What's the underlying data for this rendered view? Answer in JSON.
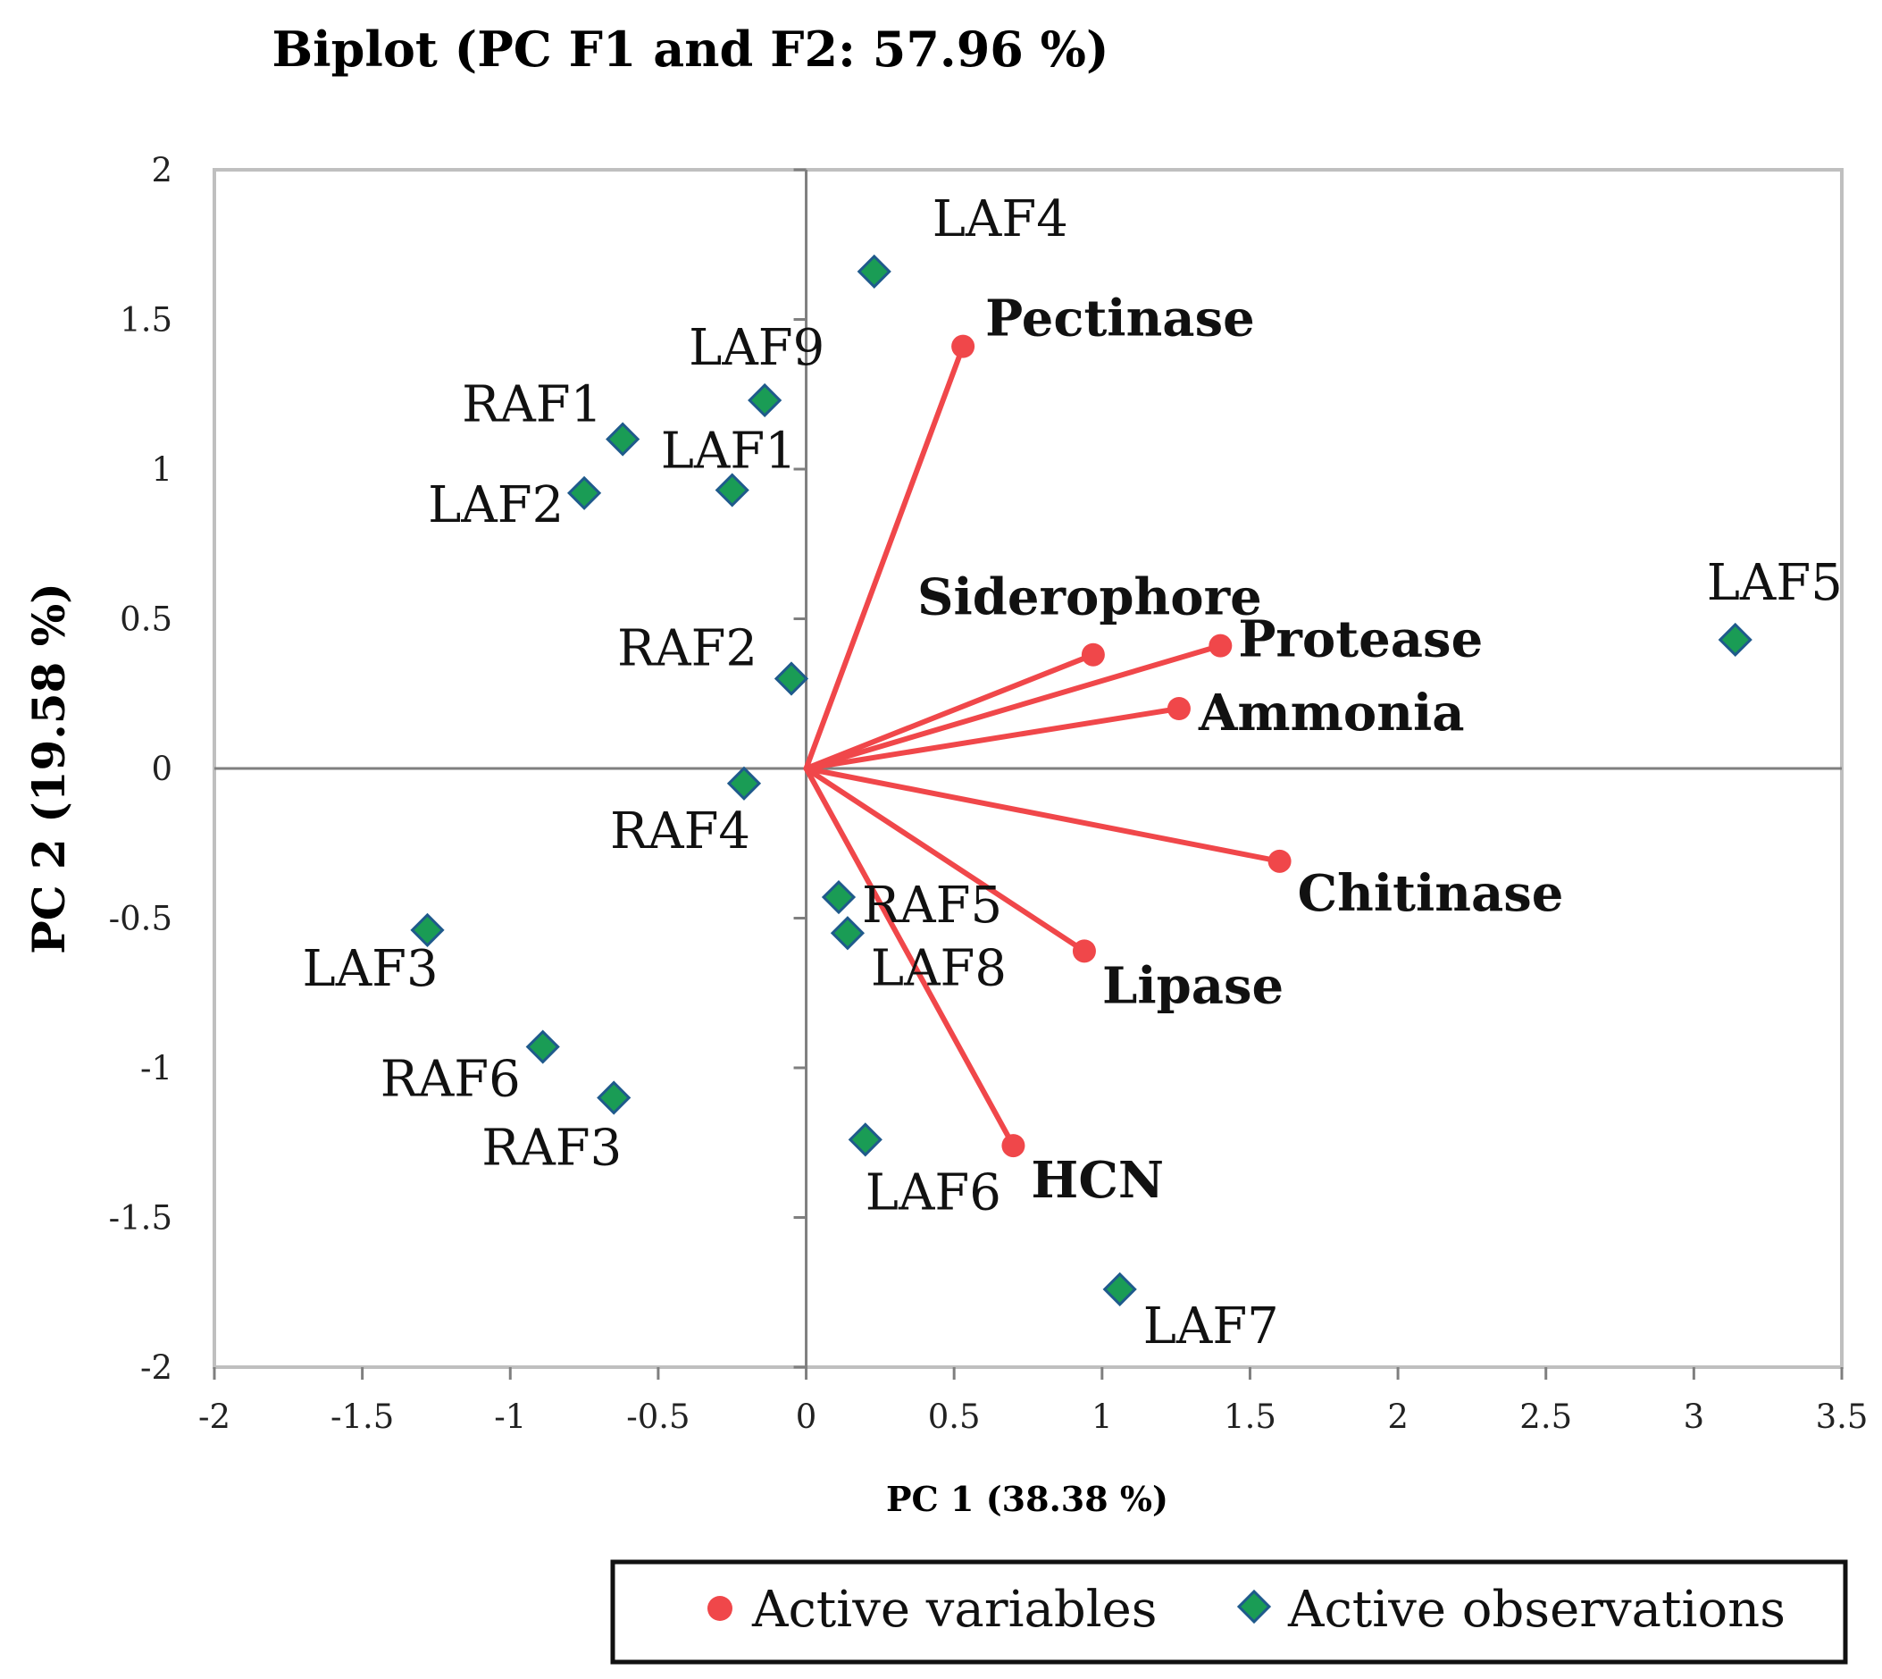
{
  "chart_data": {
    "type": "scatter",
    "title": "Biplot (PC F1 and F2: 57.96 %)",
    "xlabel": "PC 1 (38.38 %)",
    "ylabel": "PC 2 (19.58 %)",
    "xlim": [
      -2,
      3.5
    ],
    "ylim": [
      -2,
      2
    ],
    "xticks": [
      -2,
      -1.5,
      -1,
      -0.5,
      0,
      0.5,
      1,
      1.5,
      2,
      2.5,
      3,
      3.5
    ],
    "xtick_labels": [
      "-2",
      "-1.5",
      "-1",
      "-0.5",
      "0",
      "0.5",
      "1",
      "1.5",
      "2",
      "2.5",
      "3",
      "3.5"
    ],
    "yticks": [
      -2,
      -1.5,
      -1,
      -0.5,
      0,
      0.5,
      1,
      1.5,
      2
    ],
    "ytick_labels": [
      "-2",
      "-1.5",
      "-1",
      "-0.5",
      "0",
      "0.5",
      "1",
      "1.5",
      "2"
    ],
    "grid": false,
    "legend_position": "bottom-right",
    "colors": {
      "variables": "#f0474a",
      "observations": "#1a9c55",
      "observation_edge": "#1f5a8c",
      "axes": "#7f7f7f",
      "frame": "#bfbfbf"
    },
    "series": [
      {
        "name": "Active variables",
        "marker": "circle",
        "points": [
          {
            "label": "Pectinase",
            "x": 0.53,
            "y": 1.41
          },
          {
            "label": "Siderophore",
            "x": 0.97,
            "y": 0.38
          },
          {
            "label": "Protease",
            "x": 1.4,
            "y": 0.41
          },
          {
            "label": "Ammonia",
            "x": 1.26,
            "y": 0.2
          },
          {
            "label": "Chitinase",
            "x": 1.6,
            "y": -0.31
          },
          {
            "label": "Lipase",
            "x": 0.94,
            "y": -0.61
          },
          {
            "label": "HCN",
            "x": 0.7,
            "y": -1.26
          }
        ]
      },
      {
        "name": "Active observations",
        "marker": "diamond",
        "points": [
          {
            "label": "LAF4",
            "x": 0.23,
            "y": 1.66
          },
          {
            "label": "LAF9",
            "x": -0.14,
            "y": 1.23
          },
          {
            "label": "RAF1",
            "x": -0.62,
            "y": 1.1
          },
          {
            "label": "LAF1",
            "x": -0.25,
            "y": 0.93
          },
          {
            "label": "LAF2",
            "x": -0.75,
            "y": 0.92
          },
          {
            "label": "RAF2",
            "x": -0.05,
            "y": 0.3
          },
          {
            "label": "LAF5",
            "x": 3.14,
            "y": 0.43
          },
          {
            "label": "RAF4",
            "x": -0.21,
            "y": -0.05
          },
          {
            "label": "RAF5",
            "x": 0.11,
            "y": -0.43
          },
          {
            "label": "LAF8",
            "x": 0.14,
            "y": -0.55
          },
          {
            "label": "LAF3",
            "x": -1.28,
            "y": -0.54
          },
          {
            "label": "RAF6",
            "x": -0.89,
            "y": -0.93
          },
          {
            "label": "RAF3",
            "x": -0.65,
            "y": -1.1
          },
          {
            "label": "LAF6",
            "x": 0.2,
            "y": -1.24
          },
          {
            "label": "LAF7",
            "x": 1.06,
            "y": -1.74
          }
        ]
      }
    ]
  }
}
